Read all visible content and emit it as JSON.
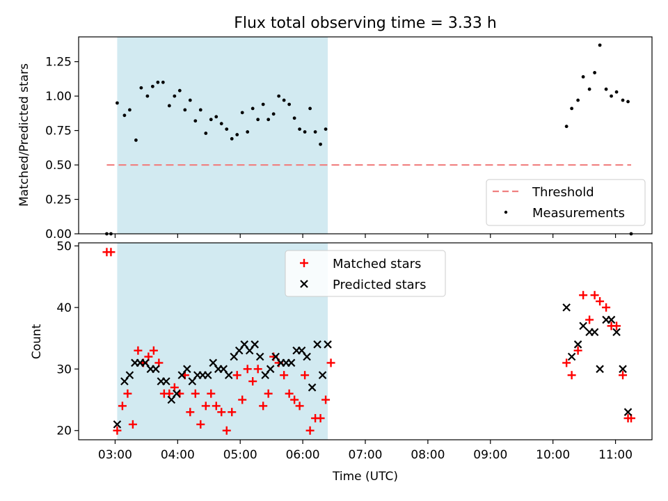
{
  "title": "Flux total observing time = 3.33 h",
  "chart_data": [
    {
      "type": "scatter",
      "ylabel": "Matched/Predicted stars",
      "xlim": [
        "02:25",
        "11:35"
      ],
      "ylim": [
        0,
        1.43
      ],
      "yticks": [
        "0.00",
        "0.25",
        "0.50",
        "0.75",
        "1.00",
        "1.25"
      ],
      "shaded_span": [
        "03:02",
        "06:24"
      ],
      "shade_color": "#add8e6",
      "threshold": {
        "name": "Threshold",
        "value": 0.5,
        "x_range": [
          "02:52",
          "11:15"
        ],
        "color": "#f08080"
      },
      "series": [
        {
          "name": "Measurements",
          "color": "#000000",
          "x": [
            "02:52",
            "02:56",
            "03:02",
            "03:09",
            "03:14",
            "03:20",
            "03:25",
            "03:31",
            "03:36",
            "03:41",
            "03:46",
            "03:52",
            "03:57",
            "04:02",
            "04:07",
            "04:12",
            "04:17",
            "04:22",
            "04:27",
            "04:32",
            "04:37",
            "04:42",
            "04:47",
            "04:52",
            "04:57",
            "05:02",
            "05:07",
            "05:12",
            "05:17",
            "05:22",
            "05:27",
            "05:32",
            "05:37",
            "05:42",
            "05:47",
            "05:52",
            "05:57",
            "06:02",
            "06:07",
            "06:12",
            "06:17",
            "06:22",
            "10:13",
            "10:18",
            "10:24",
            "10:29",
            "10:35",
            "10:40",
            "10:45",
            "10:51",
            "10:56",
            "11:01",
            "11:07",
            "11:12",
            "11:15"
          ],
          "values": [
            0.0,
            0.0,
            0.95,
            0.86,
            0.9,
            0.68,
            1.06,
            1.0,
            1.07,
            1.1,
            1.1,
            0.93,
            1.0,
            1.04,
            0.9,
            0.97,
            0.82,
            0.9,
            0.73,
            0.83,
            0.85,
            0.8,
            0.76,
            0.69,
            0.72,
            0.88,
            0.74,
            0.91,
            0.83,
            0.94,
            0.83,
            0.87,
            1.0,
            0.97,
            0.94,
            0.84,
            0.76,
            0.74,
            0.91,
            0.74,
            0.65,
            0.76,
            0.78,
            0.91,
            0.97,
            1.14,
            1.05,
            1.17,
            1.37,
            1.05,
            1.0,
            1.03,
            0.97,
            0.96,
            0.0
          ]
        }
      ],
      "legend": [
        "Threshold",
        "Measurements"
      ],
      "legend_position": "lower-right"
    },
    {
      "type": "scatter",
      "xlabel": "Time (UTC)",
      "ylabel": "Count",
      "xlim": [
        "02:25",
        "11:35"
      ],
      "xticks": [
        "03:00",
        "04:00",
        "05:00",
        "06:00",
        "07:00",
        "08:00",
        "09:00",
        "10:00",
        "11:00"
      ],
      "ylim": [
        18.5,
        50.5
      ],
      "yticks": [
        "20",
        "30",
        "40",
        "50"
      ],
      "shaded_span": [
        "03:02",
        "06:24"
      ],
      "shade_color": "#add8e6",
      "series": [
        {
          "name": "Matched stars",
          "marker": "plus",
          "color": "#ff0000",
          "x": [
            "02:52",
            "02:56",
            "03:02",
            "03:07",
            "03:12",
            "03:17",
            "03:22",
            "03:27",
            "03:32",
            "03:37",
            "03:42",
            "03:47",
            "03:52",
            "03:57",
            "04:02",
            "04:07",
            "04:12",
            "04:17",
            "04:22",
            "04:27",
            "04:32",
            "04:37",
            "04:42",
            "04:47",
            "04:52",
            "04:57",
            "05:02",
            "05:07",
            "05:12",
            "05:17",
            "05:22",
            "05:27",
            "05:32",
            "05:37",
            "05:42",
            "05:47",
            "05:52",
            "05:57",
            "06:02",
            "06:07",
            "06:12",
            "06:17",
            "06:22",
            "06:27",
            "10:13",
            "10:18",
            "10:24",
            "10:29",
            "10:35",
            "10:40",
            "10:45",
            "10:51",
            "10:56",
            "11:01",
            "11:07",
            "11:12",
            "11:15"
          ],
          "values": [
            49,
            49,
            20,
            24,
            26,
            21,
            33,
            31,
            32,
            33,
            31,
            26,
            26,
            27,
            26,
            29,
            23,
            26,
            21,
            24,
            26,
            24,
            23,
            20,
            23,
            29,
            25,
            30,
            28,
            30,
            24,
            26,
            32,
            31,
            29,
            26,
            25,
            24,
            29,
            20,
            22,
            22,
            25,
            31,
            31,
            29,
            33,
            42,
            38,
            42,
            41,
            40,
            37,
            37,
            29,
            22,
            22
          ]
        },
        {
          "name": "Predicted stars",
          "marker": "x",
          "color": "#000000",
          "x": [
            "03:02",
            "03:09",
            "03:14",
            "03:19",
            "03:24",
            "03:29",
            "03:34",
            "03:39",
            "03:44",
            "03:49",
            "03:54",
            "03:59",
            "04:04",
            "04:09",
            "04:14",
            "04:19",
            "04:24",
            "04:29",
            "04:34",
            "04:39",
            "04:44",
            "04:49",
            "04:54",
            "04:59",
            "05:04",
            "05:09",
            "05:14",
            "05:19",
            "05:24",
            "05:29",
            "05:34",
            "05:39",
            "05:44",
            "05:49",
            "05:54",
            "05:59",
            "06:04",
            "06:09",
            "06:14",
            "06:19",
            "06:24",
            "10:13",
            "10:18",
            "10:24",
            "10:29",
            "10:35",
            "10:40",
            "10:45",
            "10:51",
            "10:56",
            "11:01",
            "11:07",
            "11:12"
          ],
          "values": [
            21,
            28,
            29,
            31,
            31,
            31,
            30,
            30,
            28,
            28,
            25,
            26,
            29,
            30,
            28,
            29,
            29,
            29,
            31,
            30,
            30,
            29,
            32,
            33,
            34,
            33,
            34,
            32,
            29,
            30,
            32,
            31,
            31,
            31,
            33,
            33,
            32,
            27,
            34,
            29,
            34,
            40,
            32,
            34,
            37,
            36,
            36,
            30,
            38,
            38,
            36,
            30,
            23
          ]
        }
      ],
      "legend": [
        "Matched stars",
        "Predicted stars"
      ],
      "legend_position": "upper-center"
    }
  ]
}
